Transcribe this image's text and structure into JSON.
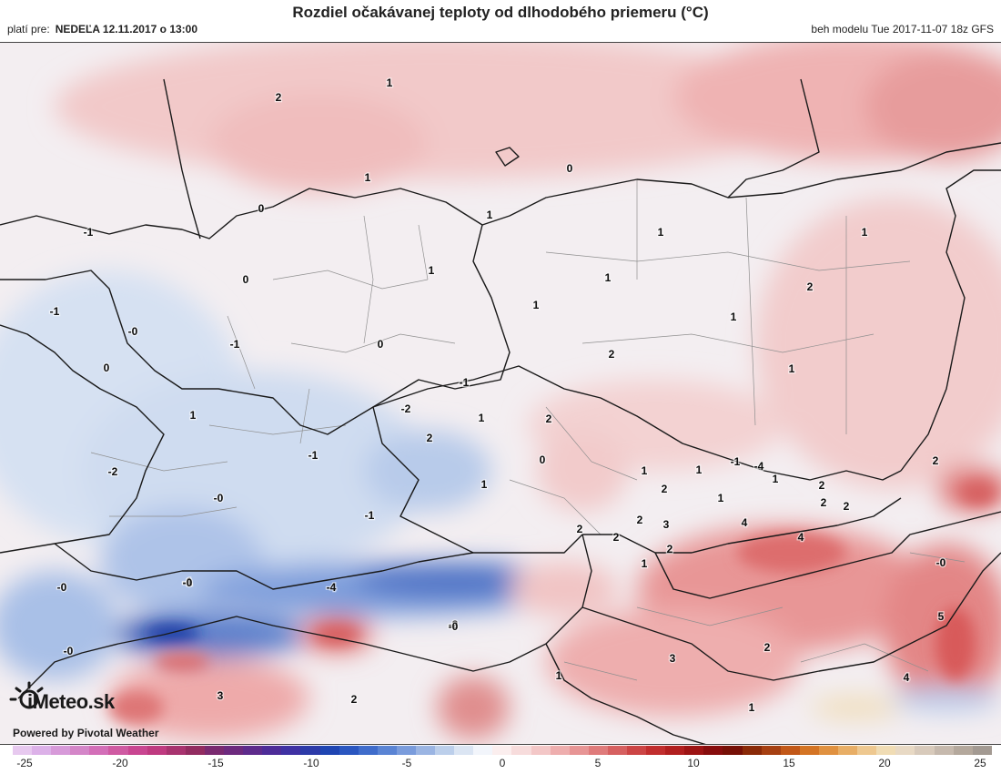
{
  "header": {
    "title": "Rozdiel očakávanej teploty od dlhodobého priemeru (°C)",
    "valid_label": "platí pre:",
    "valid_date": "NEDEĽA 12.11.2017 o 13:00",
    "model_run": "beh modelu Tue 2017-11-07 18z GFS"
  },
  "logo": {
    "brand": "iMeteo.sk",
    "powered_by": "Powered by Pivotal Weather"
  },
  "legend": {
    "min": -25,
    "max": 25,
    "tick_labels": [
      "-25",
      "-20",
      "-15",
      "-10",
      "-5",
      "0",
      "5",
      "10",
      "15",
      "20",
      "25"
    ],
    "colors": [
      "#e7c9ef",
      "#dcb1e8",
      "#d79ad9",
      "#d486c8",
      "#d36fb8",
      "#cf5aa2",
      "#c94691",
      "#bf3a80",
      "#a8336f",
      "#922c60",
      "#7a2a70",
      "#6d2a7e",
      "#5e2b8c",
      "#4d2c98",
      "#3f31a3",
      "#2c3aa8",
      "#1f45b2",
      "#2a56c0",
      "#3f6ccb",
      "#5a84d4",
      "#7a9cdc",
      "#9bb5e3",
      "#bccfeb",
      "#dbe5f3",
      "#f2f5fb",
      "#fbeeee",
      "#f7dcdc",
      "#f3c7c7",
      "#eeaeae",
      "#e79595",
      "#df7b7b",
      "#d66060",
      "#cc4545",
      "#c12e2e",
      "#b11f1f",
      "#9d1414",
      "#870d0d",
      "#761006",
      "#8a2a08",
      "#a64012",
      "#c25818",
      "#d47424",
      "#e09140",
      "#e8ae66",
      "#eec890",
      "#f0dcb4",
      "#e8d9c4",
      "#d8cabb",
      "#c6b9ad",
      "#b4a89c",
      "#a39a92"
    ]
  },
  "colors": {
    "neg_strong": "#2f57b8",
    "neg_mid": "#6f93d4",
    "neg_light": "#c6d6ee",
    "neutral": "#f4f1f3",
    "pos_light": "#f5d8d8",
    "pos_mid": "#e8a3a3",
    "pos_strong": "#d86060",
    "border": "#1a1a1a",
    "sub_border": "#8f8f8f"
  },
  "map_labels": [
    "2",
    "1",
    "1",
    "0",
    "1",
    "0",
    "-1",
    "1",
    "1",
    "0",
    "1",
    "1",
    "1",
    "2",
    "1",
    "1",
    "2",
    "-1",
    "-0",
    "-1",
    "0",
    "0",
    "-1",
    "-2",
    "1",
    "2",
    "1",
    "2",
    "0",
    "-1",
    "1",
    "-0",
    "1",
    "1",
    "-1",
    "-4",
    "1",
    "2",
    "2",
    "-2",
    "2",
    "2",
    "-1",
    "-1",
    "1",
    "2",
    "3",
    "4",
    "2",
    "4",
    "2",
    "-0",
    "-0",
    "-4",
    "-0",
    "-2",
    "2",
    "-0",
    "3",
    "2",
    "1",
    "1",
    "2",
    "4",
    "5",
    "-0",
    "3",
    "2",
    "1"
  ]
}
